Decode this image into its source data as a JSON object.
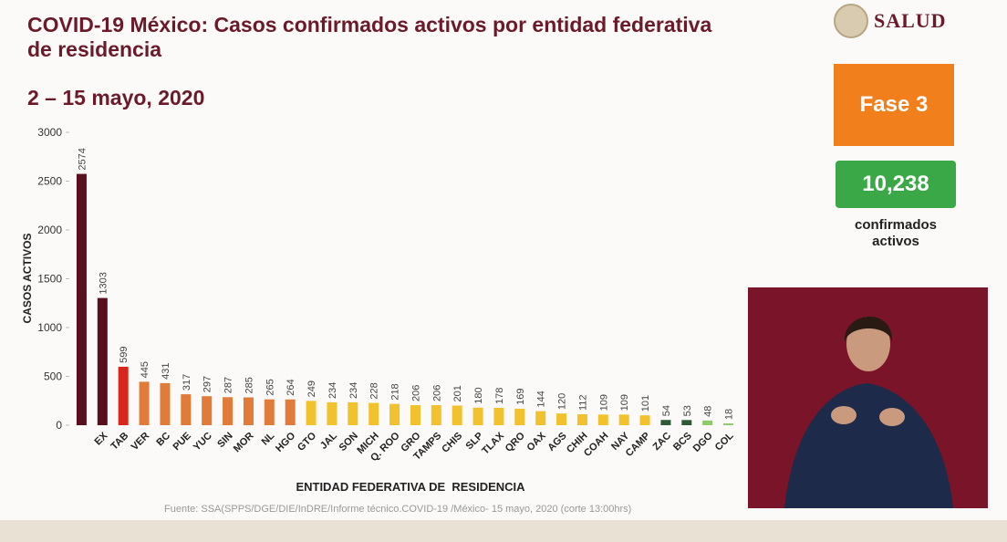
{
  "header": {
    "logo": "SALUD",
    "phase": "Fase 3",
    "total": "10,238",
    "total_label": "confirmados activos"
  },
  "source": "Fuente: SSA(SPPS/DGE/DIE/InDRE/Informe técnico.COVID-19 /México- 15 mayo, 2020 (corte 13:00hrs)",
  "chart_data": {
    "type": "bar",
    "title": "COVID-19 México: Casos confirmados activos por entidad federativa de residencia",
    "subtitle": "2 – 15 mayo, 2020",
    "y_label": "CASOS ACTIVOS",
    "x_label": "ENTIDAD FEDERATIVA DE  RESIDENCIA",
    "categories": [
      null,
      "EX",
      "TAB",
      "VER",
      "BC",
      "PUE",
      "YUC",
      "SIN",
      "MOR",
      "NL",
      "HGO",
      "GTO",
      "JAL",
      "SON",
      "MICH",
      "Q. ROO",
      "GRO",
      "TAMPS",
      "CHIS",
      "SLP",
      "TLAX",
      "QRO",
      "OAX",
      "AGS",
      "CHIH",
      "COAH",
      "NAY",
      "CAMP",
      "ZAC",
      "BCS",
      "DGO",
      "COL"
    ],
    "values": [
      2574,
      1303,
      599,
      445,
      431,
      317,
      297,
      287,
      285,
      265,
      264,
      249,
      234,
      234,
      228,
      218,
      206,
      206,
      201,
      180,
      178,
      169,
      144,
      120,
      112,
      109,
      109,
      101,
      54,
      53,
      48,
      18
    ],
    "colors": [
      "#5a0f1c",
      "#5a0f1c",
      "#d8261c",
      "#e07b39",
      "#e07b39",
      "#e07b39",
      "#e07b39",
      "#e07b39",
      "#e07b39",
      "#e07b39",
      "#e07b39",
      "#f2c12e",
      "#f2c12e",
      "#f2c12e",
      "#f2c12e",
      "#f2c12e",
      "#f2c12e",
      "#f2c12e",
      "#f2c12e",
      "#f2c12e",
      "#f2c12e",
      "#f2c12e",
      "#f2c12e",
      "#f2c12e",
      "#f2c12e",
      "#f2c12e",
      "#f2c12e",
      "#f2c12e",
      "#2f5a38",
      "#2f5a38",
      "#8fc96a",
      "#8fc96a"
    ],
    "ylim": [
      0,
      3000
    ],
    "yticks": [
      0,
      500,
      1000,
      1500,
      2000,
      2500,
      3000
    ],
    "grid": false
  }
}
